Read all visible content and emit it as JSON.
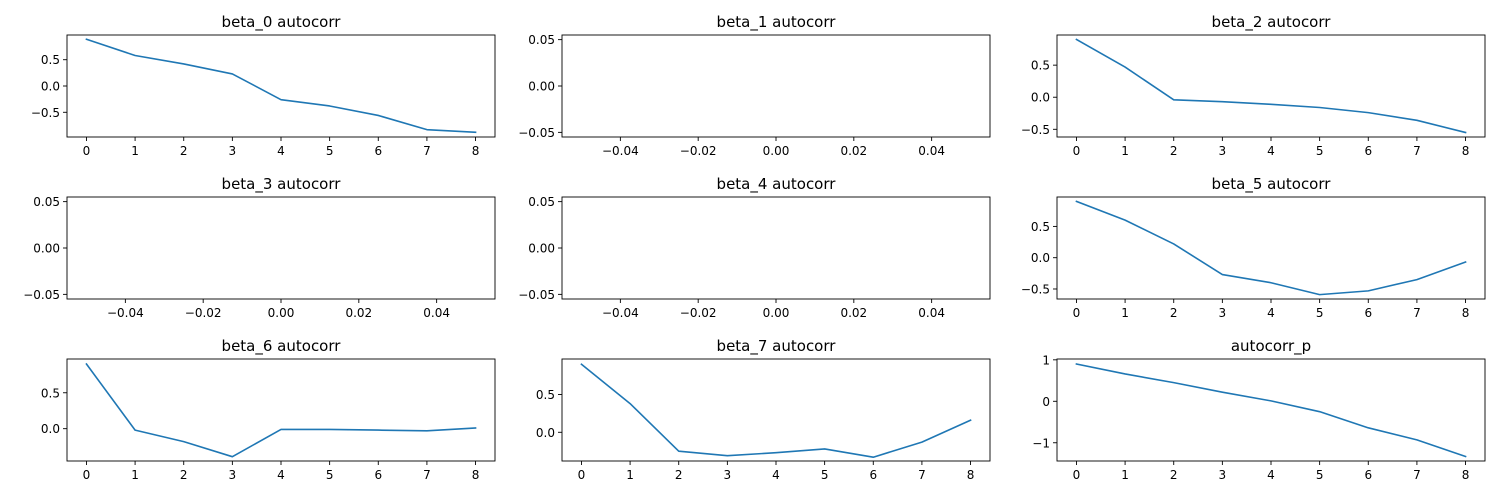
{
  "colors": {
    "series": "#1f77b4",
    "axes": "#000000",
    "background": "#ffffff"
  },
  "chart_data": [
    {
      "type": "line",
      "title": "beta_0 autocorr",
      "x": [
        0,
        1,
        2,
        3,
        4,
        5,
        6,
        7,
        8
      ],
      "y": [
        0.89,
        0.58,
        0.42,
        0.23,
        -0.26,
        -0.38,
        -0.56,
        -0.83,
        -0.88
      ],
      "xlim": [
        -0.4,
        8.4
      ],
      "ylim": [
        -0.97,
        0.97
      ],
      "xticks": [
        0,
        1,
        2,
        3,
        4,
        5,
        6,
        7,
        8
      ],
      "xticklabels": [
        "0",
        "1",
        "2",
        "3",
        "4",
        "5",
        "6",
        "7",
        "8"
      ],
      "yticks": [
        0.5,
        0.0,
        -0.5
      ],
      "yticklabels": [
        "0.5",
        "0.0",
        "−0.5"
      ],
      "grid": false
    },
    {
      "type": "line",
      "title": "beta_1 autocorr",
      "x": [],
      "y": [],
      "xlim": [
        -0.055,
        0.055
      ],
      "ylim": [
        -0.055,
        0.055
      ],
      "xticks": [
        -0.04,
        -0.02,
        0.0,
        0.02,
        0.04
      ],
      "xticklabels": [
        "−0.04",
        "−0.02",
        "0.00",
        "0.02",
        "0.04"
      ],
      "yticks": [
        0.05,
        0.0,
        -0.05
      ],
      "yticklabels": [
        "0.05",
        "0.00",
        "−0.05"
      ],
      "grid": false
    },
    {
      "type": "line",
      "title": "beta_2 autocorr",
      "x": [
        0,
        1,
        2,
        3,
        4,
        5,
        6,
        7,
        8
      ],
      "y": [
        0.9,
        0.47,
        -0.04,
        -0.07,
        -0.11,
        -0.16,
        -0.24,
        -0.36,
        -0.55
      ],
      "xlim": [
        -0.4,
        8.4
      ],
      "ylim": [
        -0.62,
        0.97
      ],
      "xticks": [
        0,
        1,
        2,
        3,
        4,
        5,
        6,
        7,
        8
      ],
      "xticklabels": [
        "0",
        "1",
        "2",
        "3",
        "4",
        "5",
        "6",
        "7",
        "8"
      ],
      "yticks": [
        0.5,
        0.0,
        -0.5
      ],
      "yticklabels": [
        "0.5",
        "0.0",
        "−0.5"
      ],
      "grid": false
    },
    {
      "type": "line",
      "title": "beta_3 autocorr",
      "x": [],
      "y": [],
      "xlim": [
        -0.055,
        0.055
      ],
      "ylim": [
        -0.055,
        0.055
      ],
      "xticks": [
        -0.04,
        -0.02,
        0.0,
        0.02,
        0.04
      ],
      "xticklabels": [
        "−0.04",
        "−0.02",
        "0.00",
        "0.02",
        "0.04"
      ],
      "yticks": [
        0.05,
        0.0,
        -0.05
      ],
      "yticklabels": [
        "0.05",
        "0.00",
        "−0.05"
      ],
      "grid": false
    },
    {
      "type": "line",
      "title": "beta_4 autocorr",
      "x": [],
      "y": [],
      "xlim": [
        -0.055,
        0.055
      ],
      "ylim": [
        -0.055,
        0.055
      ],
      "xticks": [
        -0.04,
        -0.02,
        0.0,
        0.02,
        0.04
      ],
      "xticklabels": [
        "−0.04",
        "−0.02",
        "0.00",
        "0.02",
        "0.04"
      ],
      "yticks": [
        0.05,
        0.0,
        -0.05
      ],
      "yticklabels": [
        "0.05",
        "0.00",
        "−0.05"
      ],
      "grid": false
    },
    {
      "type": "line",
      "title": "beta_5 autocorr",
      "x": [
        0,
        1,
        2,
        3,
        4,
        5,
        6,
        7,
        8
      ],
      "y": [
        0.9,
        0.6,
        0.22,
        -0.27,
        -0.4,
        -0.59,
        -0.53,
        -0.35,
        -0.07
      ],
      "xlim": [
        -0.4,
        8.4
      ],
      "ylim": [
        -0.66,
        0.97
      ],
      "xticks": [
        0,
        1,
        2,
        3,
        4,
        5,
        6,
        7,
        8
      ],
      "xticklabels": [
        "0",
        "1",
        "2",
        "3",
        "4",
        "5",
        "6",
        "7",
        "8"
      ],
      "yticks": [
        0.5,
        0.0,
        -0.5
      ],
      "yticklabels": [
        "0.5",
        "0.0",
        "−0.5"
      ],
      "grid": false
    },
    {
      "type": "line",
      "title": "beta_6 autocorr",
      "x": [
        0,
        1,
        2,
        3,
        4,
        5,
        6,
        7,
        8
      ],
      "y": [
        0.9,
        -0.02,
        -0.18,
        -0.39,
        -0.01,
        -0.01,
        -0.02,
        -0.03,
        0.01
      ],
      "xlim": [
        -0.4,
        8.4
      ],
      "ylim": [
        -0.45,
        0.97
      ],
      "xticks": [
        0,
        1,
        2,
        3,
        4,
        5,
        6,
        7,
        8
      ],
      "xticklabels": [
        "0",
        "1",
        "2",
        "3",
        "4",
        "5",
        "6",
        "7",
        "8"
      ],
      "yticks": [
        0.5,
        0.0
      ],
      "yticklabels": [
        "0.5",
        "0.0"
      ],
      "grid": false
    },
    {
      "type": "line",
      "title": "beta_7 autocorr",
      "x": [
        0,
        1,
        2,
        3,
        4,
        5,
        6,
        7,
        8
      ],
      "y": [
        0.9,
        0.38,
        -0.25,
        -0.31,
        -0.27,
        -0.22,
        -0.33,
        -0.13,
        0.16
      ],
      "xlim": [
        -0.4,
        8.4
      ],
      "ylim": [
        -0.38,
        0.97
      ],
      "xticks": [
        0,
        1,
        2,
        3,
        4,
        5,
        6,
        7,
        8
      ],
      "xticklabels": [
        "0",
        "1",
        "2",
        "3",
        "4",
        "5",
        "6",
        "7",
        "8"
      ],
      "yticks": [
        0.5,
        0.0
      ],
      "yticklabels": [
        "0.5",
        "0.0"
      ],
      "grid": false
    },
    {
      "type": "line",
      "title": "autocorr_p",
      "x": [
        0,
        1,
        2,
        3,
        4,
        5,
        6,
        7,
        8
      ],
      "y": [
        0.9,
        0.66,
        0.45,
        0.22,
        0.01,
        -0.25,
        -0.64,
        -0.93,
        -1.33
      ],
      "xlim": [
        -0.4,
        8.4
      ],
      "ylim": [
        -1.44,
        1.02
      ],
      "xticks": [
        0,
        1,
        2,
        3,
        4,
        5,
        6,
        7,
        8
      ],
      "xticklabels": [
        "0",
        "1",
        "2",
        "3",
        "4",
        "5",
        "6",
        "7",
        "8"
      ],
      "yticks": [
        1,
        0,
        -1
      ],
      "yticklabels": [
        "1",
        "0",
        "−1"
      ],
      "grid": false
    }
  ]
}
